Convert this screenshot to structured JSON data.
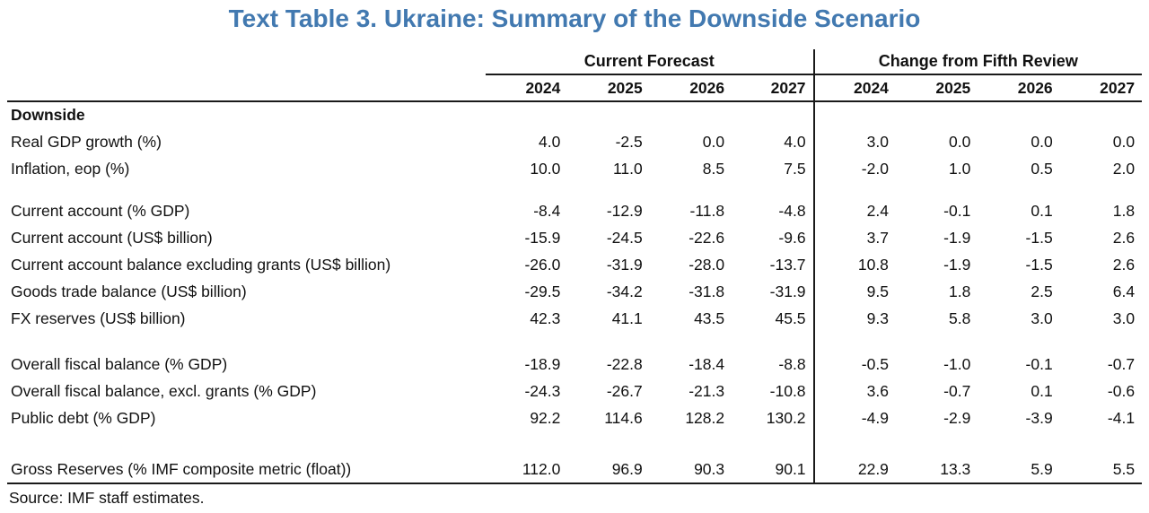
{
  "title": "Text Table 3. Ukraine: Summary of the Downside Scenario",
  "colors": {
    "title_blue": "#4279b0",
    "rule_black": "#1a1a1a",
    "text": "#111111"
  },
  "table": {
    "group_headers": [
      {
        "label": "Current Forecast"
      },
      {
        "label": "Change from Fifth Review"
      }
    ],
    "years": [
      "2024",
      "2025",
      "2026",
      "2027",
      "2024",
      "2025",
      "2026",
      "2027"
    ],
    "rows": [
      {
        "type": "section",
        "label": "Downside"
      },
      {
        "type": "data",
        "label": "Real GDP growth (%)",
        "values": [
          "4.0",
          "-2.5",
          "0.0",
          "4.0",
          "3.0",
          "0.0",
          "0.0",
          "0.0"
        ]
      },
      {
        "type": "data",
        "label": "Inflation, eop (%)",
        "values": [
          "10.0",
          "11.0",
          "8.5",
          "7.5",
          "-2.0",
          "1.0",
          "0.5",
          "2.0"
        ]
      },
      {
        "type": "spacer-sm"
      },
      {
        "type": "data",
        "label": "Current account (% GDP)",
        "values": [
          "-8.4",
          "-12.9",
          "-11.8",
          "-4.8",
          "2.4",
          "-0.1",
          "0.1",
          "1.8"
        ]
      },
      {
        "type": "data",
        "label": "Current account (US$ billion)",
        "values": [
          "-15.9",
          "-24.5",
          "-22.6",
          "-9.6",
          "3.7",
          "-1.9",
          "-1.5",
          "2.6"
        ]
      },
      {
        "type": "data",
        "label": "Current account balance excluding grants (US$ billion)",
        "values": [
          "-26.0",
          "-31.9",
          "-28.0",
          "-13.7",
          "10.8",
          "-1.9",
          "-1.5",
          "2.6"
        ]
      },
      {
        "type": "data",
        "label": "Goods trade balance (US$ billion)",
        "values": [
          "-29.5",
          "-34.2",
          "-31.8",
          "-31.9",
          "9.5",
          "1.8",
          "2.5",
          "6.4"
        ]
      },
      {
        "type": "data",
        "label": "FX reserves (US$ billion)",
        "values": [
          "42.3",
          "41.1",
          "43.5",
          "45.5",
          "9.3",
          "5.8",
          "3.0",
          "3.0"
        ]
      },
      {
        "type": "spacer-md"
      },
      {
        "type": "data",
        "label": "Overall fiscal balance (% GDP)",
        "values": [
          "-18.9",
          "-22.8",
          "-18.4",
          "-8.8",
          "-0.5",
          "-1.0",
          "-0.1",
          "-0.7"
        ]
      },
      {
        "type": "data",
        "label": "Overall fiscal balance, excl. grants (% GDP)",
        "values": [
          "-24.3",
          "-26.7",
          "-21.3",
          "-10.8",
          "3.6",
          "-0.7",
          "0.1",
          "-0.6"
        ]
      },
      {
        "type": "data",
        "label": "Public debt (% GDP)",
        "values": [
          "92.2",
          "114.6",
          "128.2",
          "130.2",
          "-4.9",
          "-2.9",
          "-3.9",
          "-4.1"
        ]
      },
      {
        "type": "spacer-lg"
      },
      {
        "type": "data",
        "label": "Gross Reserves (% IMF composite metric (float))",
        "values": [
          "112.0",
          "96.9",
          "90.3",
          "90.1",
          "22.9",
          "13.3",
          "5.9",
          "5.5"
        ],
        "bottom_rule": true
      }
    ],
    "source": "Source: IMF staff estimates."
  },
  "chart_data": {
    "type": "table",
    "title": "Text Table 3. Ukraine: Summary of the Downside Scenario",
    "column_groups": [
      "Current Forecast",
      "Change from Fifth Review"
    ],
    "columns": [
      "2024",
      "2025",
      "2026",
      "2027",
      "2024",
      "2025",
      "2026",
      "2027"
    ],
    "section": "Downside",
    "rows": [
      {
        "label": "Real GDP growth (%)",
        "current_forecast": [
          4.0,
          -2.5,
          0.0,
          4.0
        ],
        "change_from_fifth_review": [
          3.0,
          0.0,
          0.0,
          0.0
        ]
      },
      {
        "label": "Inflation, eop (%)",
        "current_forecast": [
          10.0,
          11.0,
          8.5,
          7.5
        ],
        "change_from_fifth_review": [
          -2.0,
          1.0,
          0.5,
          2.0
        ]
      },
      {
        "label": "Current account (% GDP)",
        "current_forecast": [
          -8.4,
          -12.9,
          -11.8,
          -4.8
        ],
        "change_from_fifth_review": [
          2.4,
          -0.1,
          0.1,
          1.8
        ]
      },
      {
        "label": "Current account (US$ billion)",
        "current_forecast": [
          -15.9,
          -24.5,
          -22.6,
          -9.6
        ],
        "change_from_fifth_review": [
          3.7,
          -1.9,
          -1.5,
          2.6
        ]
      },
      {
        "label": "Current account balance excluding grants (US$ billion)",
        "current_forecast": [
          -26.0,
          -31.9,
          -28.0,
          -13.7
        ],
        "change_from_fifth_review": [
          10.8,
          -1.9,
          -1.5,
          2.6
        ]
      },
      {
        "label": "Goods trade balance (US$ billion)",
        "current_forecast": [
          -29.5,
          -34.2,
          -31.8,
          -31.9
        ],
        "change_from_fifth_review": [
          9.5,
          1.8,
          2.5,
          6.4
        ]
      },
      {
        "label": "FX reserves (US$ billion)",
        "current_forecast": [
          42.3,
          41.1,
          43.5,
          45.5
        ],
        "change_from_fifth_review": [
          9.3,
          5.8,
          3.0,
          3.0
        ]
      },
      {
        "label": "Overall fiscal balance (% GDP)",
        "current_forecast": [
          -18.9,
          -22.8,
          -18.4,
          -8.8
        ],
        "change_from_fifth_review": [
          -0.5,
          -1.0,
          -0.1,
          -0.7
        ]
      },
      {
        "label": "Overall fiscal balance, excl. grants (% GDP)",
        "current_forecast": [
          -24.3,
          -26.7,
          -21.3,
          -10.8
        ],
        "change_from_fifth_review": [
          3.6,
          -0.7,
          0.1,
          -0.6
        ]
      },
      {
        "label": "Public debt (% GDP)",
        "current_forecast": [
          92.2,
          114.6,
          128.2,
          130.2
        ],
        "change_from_fifth_review": [
          -4.9,
          -2.9,
          -3.9,
          -4.1
        ]
      },
      {
        "label": "Gross Reserves (% IMF composite metric (float))",
        "current_forecast": [
          112.0,
          96.9,
          90.3,
          90.1
        ],
        "change_from_fifth_review": [
          22.9,
          13.3,
          5.9,
          5.5
        ]
      }
    ],
    "source": "Source: IMF staff estimates."
  }
}
